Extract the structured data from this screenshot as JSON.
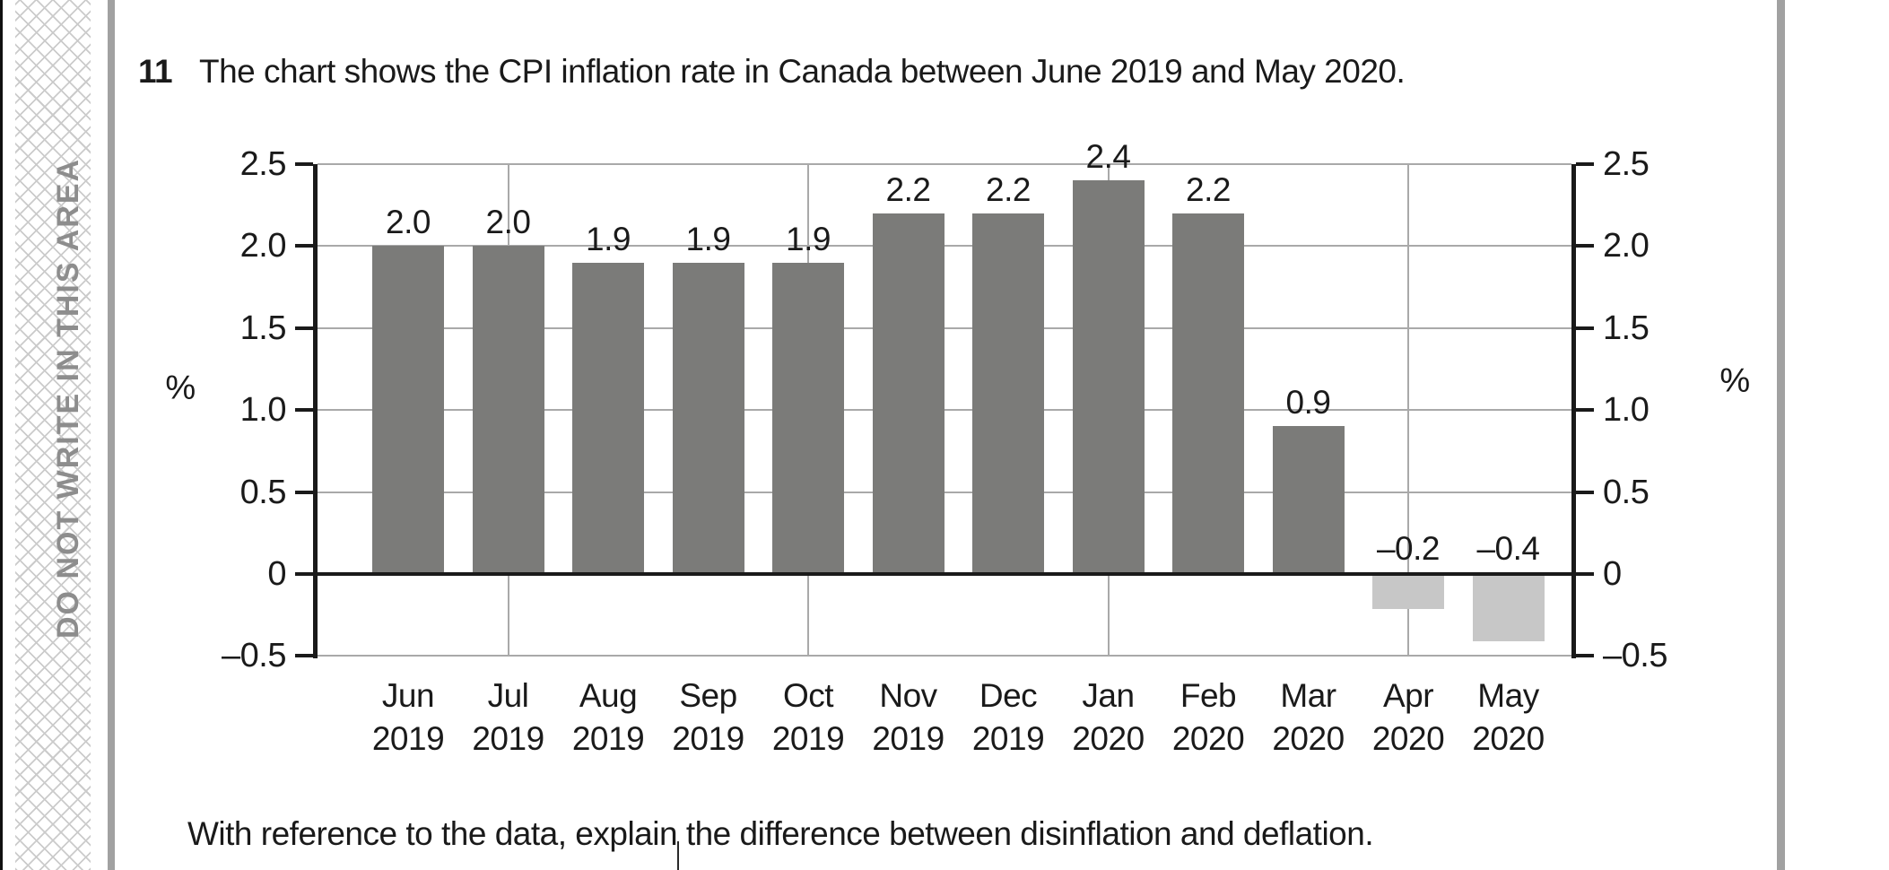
{
  "margin": {
    "do_not_write": "DO NOT WRITE IN THIS AREA"
  },
  "question": {
    "number": "11",
    "text": "The chart shows the CPI inflation rate in Canada between June 2019 and May 2020.",
    "prompt": "With reference to the data, explain the difference between disinflation and deflation."
  },
  "chart_data": {
    "type": "bar",
    "title": "CPI inflation rate in Canada, June 2019 to May 2020",
    "categories": [
      {
        "month": "Jun",
        "year": "2019"
      },
      {
        "month": "Jul",
        "year": "2019"
      },
      {
        "month": "Aug",
        "year": "2019"
      },
      {
        "month": "Sep",
        "year": "2019"
      },
      {
        "month": "Oct",
        "year": "2019"
      },
      {
        "month": "Nov",
        "year": "2019"
      },
      {
        "month": "Dec",
        "year": "2019"
      },
      {
        "month": "Jan",
        "year": "2020"
      },
      {
        "month": "Feb",
        "year": "2020"
      },
      {
        "month": "Mar",
        "year": "2020"
      },
      {
        "month": "Apr",
        "year": "2020"
      },
      {
        "month": "May",
        "year": "2020"
      }
    ],
    "values": [
      2.0,
      2.0,
      1.9,
      1.9,
      1.9,
      2.2,
      2.2,
      2.4,
      2.2,
      0.9,
      -0.2,
      -0.4
    ],
    "value_labels": [
      "2.0",
      "2.0",
      "1.9",
      "1.9",
      "1.9",
      "2.2",
      "2.2",
      "2.4",
      "2.2",
      "0.9",
      "–0.2",
      "–0.4"
    ],
    "ylabel_left": "%",
    "ylabel_right": "%",
    "ylim": [
      -0.5,
      2.5
    ],
    "yticks": [
      {
        "v": 2.5,
        "label": "2.5"
      },
      {
        "v": 2.0,
        "label": "2.0"
      },
      {
        "v": 1.5,
        "label": "1.5"
      },
      {
        "v": 1.0,
        "label": "1.0"
      },
      {
        "v": 0.5,
        "label": "0.5"
      },
      {
        "v": 0.0,
        "label": "0"
      },
      {
        "v": -0.5,
        "label": "–0.5"
      }
    ],
    "grid": "on",
    "grid_vertical_at": [
      "Jul 2019",
      "Oct 2019",
      "Jan 2020",
      "Apr 2020"
    ],
    "colors": {
      "bar_positive": "#7b7b79",
      "bar_negative": "#c7c7c7",
      "gridline": "#a9a9a9",
      "axis": "#1a1a1a",
      "margin_text": "#8d8d8d",
      "divider": "#a1a1a1"
    }
  }
}
